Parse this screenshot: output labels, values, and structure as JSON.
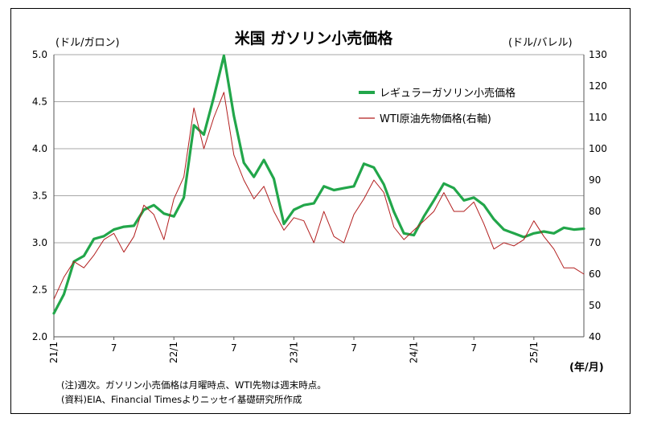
{
  "chart_data": {
    "type": "line",
    "title": "米国 ガソリン小売価格",
    "y_left_unit": "(ドル/ガロン)",
    "y_right_unit": "(ドル/バレル)",
    "x_unit": "(年/月)",
    "y_left_lim": [
      2.0,
      5.0
    ],
    "y_left_ticks": [
      "2.0",
      "2.5",
      "3.0",
      "3.5",
      "4.0",
      "4.5",
      "5.0"
    ],
    "y_right_lim": [
      40,
      130
    ],
    "y_right_ticks": [
      "40",
      "50",
      "60",
      "70",
      "80",
      "90",
      "100",
      "110",
      "120",
      "130"
    ],
    "x_range": [
      "2021-01",
      "2025-06"
    ],
    "x_ticks": [
      {
        "label": "21/1",
        "date": "2021-01",
        "rotated": true
      },
      {
        "label": "7",
        "date": "2021-07",
        "rotated": false
      },
      {
        "label": "22/1",
        "date": "2022-01",
        "rotated": true
      },
      {
        "label": "7",
        "date": "2022-07",
        "rotated": false
      },
      {
        "label": "23/1",
        "date": "2023-01",
        "rotated": true
      },
      {
        "label": "7",
        "date": "2023-07",
        "rotated": false
      },
      {
        "label": "24/1",
        "date": "2024-01",
        "rotated": true
      },
      {
        "label": "7",
        "date": "2024-07",
        "rotated": false
      },
      {
        "label": "25/1",
        "date": "2025-01",
        "rotated": true
      }
    ],
    "grid": "horizontal",
    "legend_position": "top-right",
    "series": [
      {
        "name": "レギュラーガソリン小売価格",
        "axis": "left",
        "color": "#22a64a",
        "x": [
          "2021-01",
          "2021-02",
          "2021-03",
          "2021-04",
          "2021-05",
          "2021-06",
          "2021-07",
          "2021-08",
          "2021-09",
          "2021-10",
          "2021-11",
          "2021-12",
          "2022-01",
          "2022-02",
          "2022-03",
          "2022-04",
          "2022-05",
          "2022-06",
          "2022-07",
          "2022-08",
          "2022-09",
          "2022-10",
          "2022-11",
          "2022-12",
          "2023-01",
          "2023-02",
          "2023-03",
          "2023-04",
          "2023-05",
          "2023-06",
          "2023-07",
          "2023-08",
          "2023-09",
          "2023-10",
          "2023-11",
          "2023-12",
          "2024-01",
          "2024-02",
          "2024-03",
          "2024-04",
          "2024-05",
          "2024-06",
          "2024-07",
          "2024-08",
          "2024-09",
          "2024-10",
          "2024-11",
          "2024-12",
          "2025-01",
          "2025-02",
          "2025-03",
          "2025-04",
          "2025-05",
          "2025-06"
        ],
        "values": [
          2.25,
          2.45,
          2.8,
          2.86,
          3.04,
          3.07,
          3.14,
          3.17,
          3.18,
          3.35,
          3.4,
          3.31,
          3.28,
          3.48,
          4.25,
          4.15,
          4.55,
          4.99,
          4.35,
          3.85,
          3.7,
          3.88,
          3.68,
          3.2,
          3.35,
          3.4,
          3.42,
          3.6,
          3.56,
          3.58,
          3.6,
          3.84,
          3.8,
          3.62,
          3.33,
          3.1,
          3.08,
          3.28,
          3.45,
          3.63,
          3.58,
          3.45,
          3.48,
          3.4,
          3.25,
          3.14,
          3.1,
          3.06,
          3.1,
          3.12,
          3.1,
          3.16,
          3.14,
          3.15
        ]
      },
      {
        "name": "WTI原油先物価格(右軸)",
        "axis": "right",
        "color": "#b21e1e",
        "x": [
          "2021-01",
          "2021-02",
          "2021-03",
          "2021-04",
          "2021-05",
          "2021-06",
          "2021-07",
          "2021-08",
          "2021-09",
          "2021-10",
          "2021-11",
          "2021-12",
          "2022-01",
          "2022-02",
          "2022-03",
          "2022-04",
          "2022-05",
          "2022-06",
          "2022-07",
          "2022-08",
          "2022-09",
          "2022-10",
          "2022-11",
          "2022-12",
          "2023-01",
          "2023-02",
          "2023-03",
          "2023-04",
          "2023-05",
          "2023-06",
          "2023-07",
          "2023-08",
          "2023-09",
          "2023-10",
          "2023-11",
          "2023-12",
          "2024-01",
          "2024-02",
          "2024-03",
          "2024-04",
          "2024-05",
          "2024-06",
          "2024-07",
          "2024-08",
          "2024-09",
          "2024-10",
          "2024-11",
          "2024-12",
          "2025-01",
          "2025-02",
          "2025-03",
          "2025-04",
          "2025-05",
          "2025-06"
        ],
        "values": [
          52,
          59,
          64,
          62,
          66,
          71,
          73,
          67,
          72,
          82,
          79,
          71,
          84,
          91,
          113,
          100,
          110,
          118,
          98,
          90,
          84,
          88,
          80,
          74,
          78,
          77,
          70,
          80,
          72,
          70,
          79,
          84,
          90,
          86,
          75,
          71,
          74,
          77,
          80,
          86,
          80,
          80,
          83,
          76,
          68,
          70,
          69,
          71,
          77,
          72,
          68,
          62,
          62,
          60
        ]
      }
    ]
  },
  "notes": {
    "line1": "(注)週次。ガソリン小売価格は月曜時点、WTI先物は週末時点。",
    "line2": "(資料)EIA、Financial Timesよりニッセイ基礎研究所作成"
  }
}
